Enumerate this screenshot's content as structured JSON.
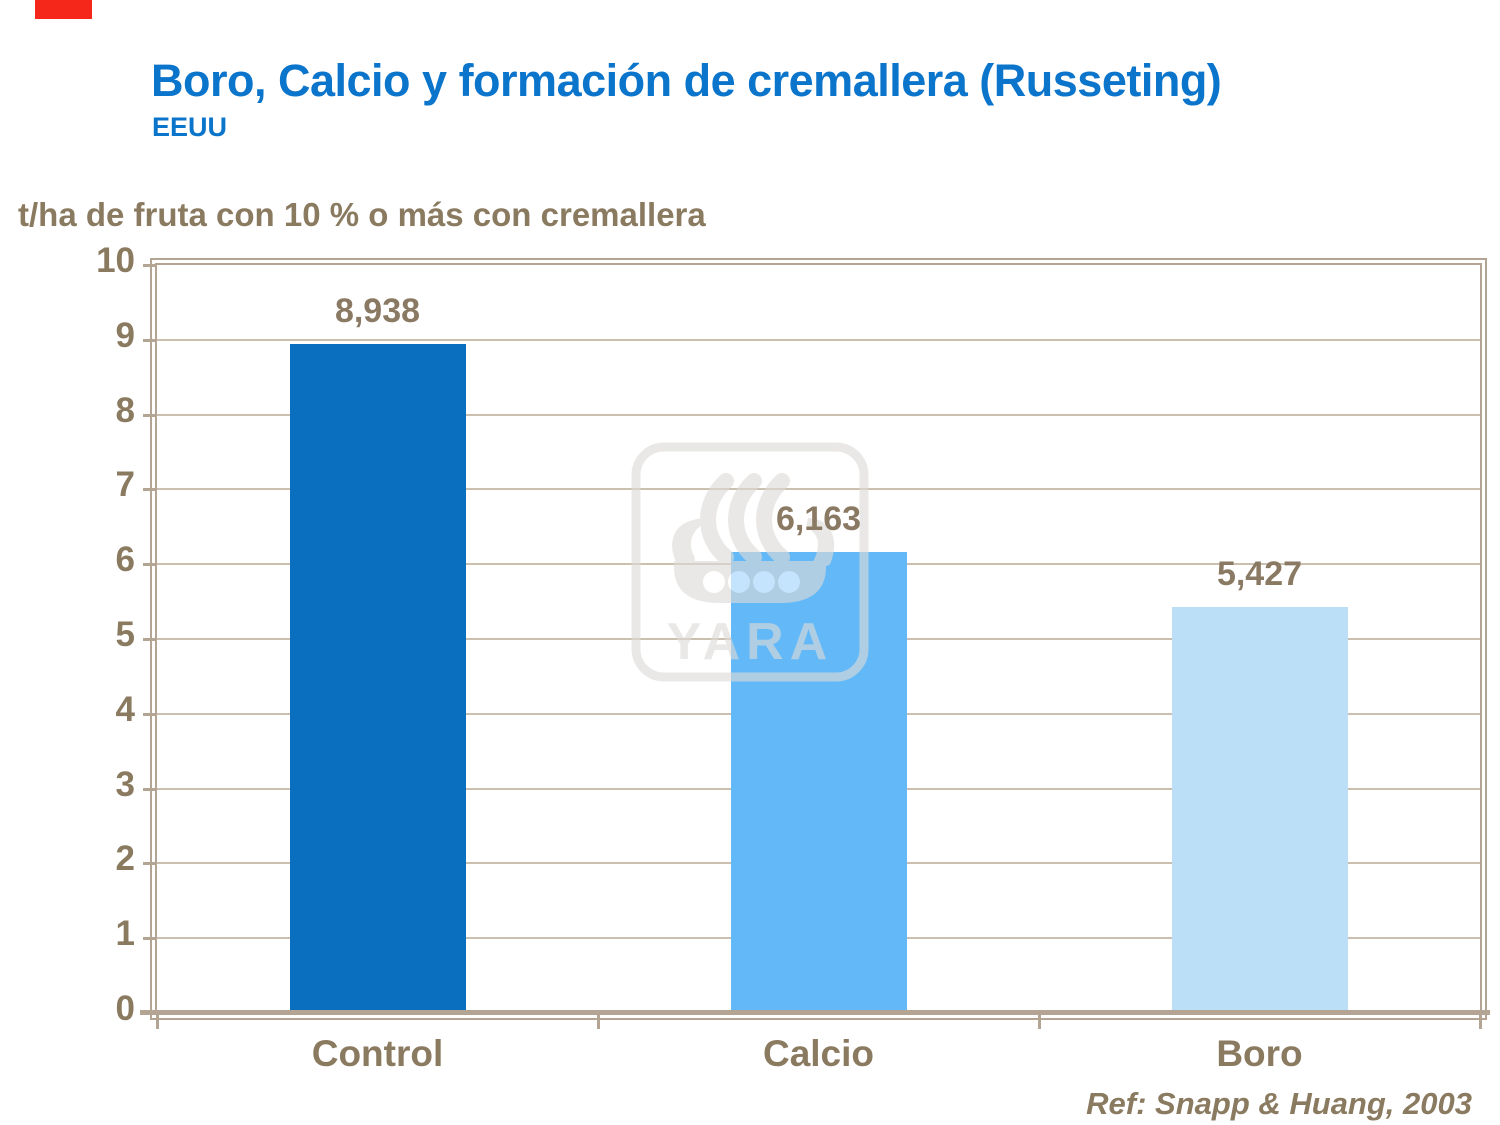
{
  "slide": {
    "title": "Boro, Calcio y formación de cremallera (Russeting)",
    "subtitle": "EEUU",
    "reference": "Ref: Snapp & Huang, 2003",
    "title_color": "#0b74cb",
    "text_color": "#8a7a60",
    "corner_mark_color": "#f5261a"
  },
  "chart_data": {
    "type": "bar",
    "title": "t/ha de fruta con 10 % o más con cremallera",
    "categories": [
      "Control",
      "Calcio",
      "Boro"
    ],
    "values": [
      8.938,
      6.163,
      5.427
    ],
    "value_labels": [
      "8,938",
      "6,163",
      "5,427"
    ],
    "bar_colors": [
      "#0a6fbe",
      "#63b9f8",
      "#bcdff8"
    ],
    "ylim": [
      0,
      10
    ],
    "ytick_step": 1,
    "yticks": [
      "0",
      "1",
      "2",
      "3",
      "4",
      "5",
      "6",
      "7",
      "8",
      "9",
      "10"
    ],
    "grid": "horizontal",
    "legend": "none",
    "frame_color": "#b3a493",
    "grid_color": "#cbbfaf"
  },
  "watermark": {
    "name": "yara-logo",
    "text": "YARA",
    "color": "#dedbd7"
  }
}
